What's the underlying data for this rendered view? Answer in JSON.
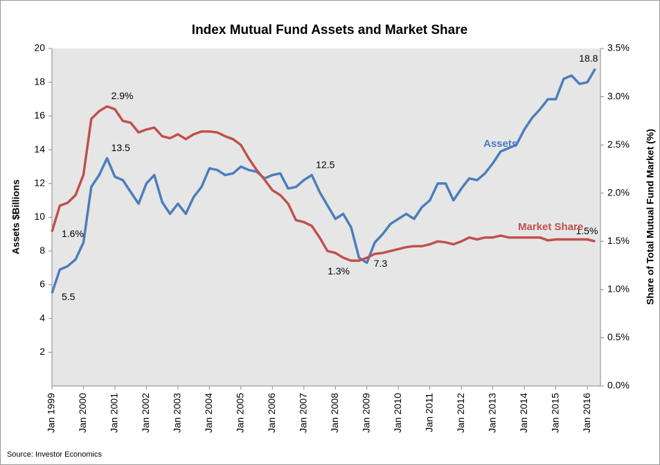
{
  "chart_data": {
    "type": "line",
    "title": "Index Mutual Fund Assets and Market Share",
    "ylabel": "Assets $Billions",
    "y2label": "Share of Total Mutual Fund Market (%)",
    "source": "Source: Investor Economics",
    "x": [
      "1999-01",
      "1999-04",
      "1999-07",
      "1999-10",
      "2000-01",
      "2000-04",
      "2000-07",
      "2000-10",
      "2001-01",
      "2001-04",
      "2001-07",
      "2001-10",
      "2002-01",
      "2002-04",
      "2002-07",
      "2002-10",
      "2003-01",
      "2003-04",
      "2003-07",
      "2003-10",
      "2004-01",
      "2004-04",
      "2004-07",
      "2004-10",
      "2005-01",
      "2005-04",
      "2005-07",
      "2005-10",
      "2006-01",
      "2006-04",
      "2006-07",
      "2006-10",
      "2007-01",
      "2007-04",
      "2007-07",
      "2007-10",
      "2008-01",
      "2008-04",
      "2008-07",
      "2008-10",
      "2009-01",
      "2009-04",
      "2009-07",
      "2009-10",
      "2010-01",
      "2010-04",
      "2010-07",
      "2010-10",
      "2011-01",
      "2011-04",
      "2011-07",
      "2011-10",
      "2012-01",
      "2012-04",
      "2012-07",
      "2012-10",
      "2013-01",
      "2013-04",
      "2013-07",
      "2013-10",
      "2014-01",
      "2014-04",
      "2014-07",
      "2014-10",
      "2015-01",
      "2015-04",
      "2015-07",
      "2015-10",
      "2016-01",
      "2016-04"
    ],
    "xlim": [
      "1999-01",
      "2016-06"
    ],
    "xticks": [
      {
        "value": "1999-01",
        "label": "Jan 1999"
      },
      {
        "value": "2000-01",
        "label": "Jan 2000"
      },
      {
        "value": "2001-01",
        "label": "Jan 2001"
      },
      {
        "value": "2002-01",
        "label": "Jan 2002"
      },
      {
        "value": "2003-01",
        "label": "Jan 2003"
      },
      {
        "value": "2004-01",
        "label": "Jan 2004"
      },
      {
        "value": "2005-01",
        "label": "Jan 2005"
      },
      {
        "value": "2006-01",
        "label": "Jan 2006"
      },
      {
        "value": "2007-01",
        "label": "Jan 2007"
      },
      {
        "value": "2008-01",
        "label": "Jan 2008"
      },
      {
        "value": "2009-01",
        "label": "Jan 2009"
      },
      {
        "value": "2010-01",
        "label": "Jan 2010"
      },
      {
        "value": "2011-01",
        "label": "Jan 2011"
      },
      {
        "value": "2012-01",
        "label": "Jan 2012"
      },
      {
        "value": "2013-01",
        "label": "Jan 2013"
      },
      {
        "value": "2014-01",
        "label": "Jan 2014"
      },
      {
        "value": "2015-01",
        "label": "Jan 2015"
      },
      {
        "value": "2016-01",
        "label": "Jan 2016"
      }
    ],
    "ylim": [
      0,
      20
    ],
    "yticks": [
      2,
      4,
      6,
      8,
      10,
      12,
      14,
      16,
      18,
      20
    ],
    "y2lim": [
      0,
      3.5
    ],
    "y2ticks": [
      {
        "value": 0,
        "label": "0.0%"
      },
      {
        "value": 0.5,
        "label": "0.5%"
      },
      {
        "value": 1,
        "label": "1.0%"
      },
      {
        "value": 1.5,
        "label": "1.5%"
      },
      {
        "value": 2,
        "label": "2.0%"
      },
      {
        "value": 2.5,
        "label": "2.5%"
      },
      {
        "value": 3,
        "label": "3.0%"
      },
      {
        "value": 3.5,
        "label": "3.5%"
      }
    ],
    "grid": false,
    "series": [
      {
        "name": "Assets",
        "color": "#4a7ebb",
        "values": [
          5.5,
          6.9,
          7.1,
          7.5,
          8.5,
          11.8,
          12.5,
          13.5,
          12.4,
          12.2,
          11.5,
          10.8,
          12.0,
          12.5,
          10.9,
          10.2,
          10.8,
          10.2,
          11.2,
          11.8,
          12.9,
          12.8,
          12.5,
          12.6,
          13.0,
          12.8,
          12.7,
          12.3,
          12.5,
          12.6,
          11.7,
          11.8,
          12.2,
          12.5,
          11.5,
          10.7,
          9.9,
          10.2,
          9.4,
          7.6,
          7.3,
          8.5,
          9.0,
          9.6,
          9.9,
          10.2,
          9.9,
          10.6,
          11.0,
          12.0,
          12.0,
          11.0,
          11.7,
          12.3,
          12.2,
          12.6,
          13.2,
          13.9,
          14.1,
          14.3,
          15.2,
          15.9,
          16.4,
          17.0,
          17.0,
          18.2,
          18.4,
          17.9,
          18.0,
          18.8
        ],
        "value_labels": [
          "5.5",
          null,
          null,
          null,
          null,
          null,
          null,
          "13.5",
          null,
          null,
          null,
          null,
          null,
          null,
          null,
          null,
          null,
          null,
          null,
          null,
          null,
          null,
          null,
          null,
          null,
          null,
          null,
          null,
          null,
          null,
          null,
          null,
          null,
          "12.5",
          null,
          null,
          null,
          null,
          null,
          null,
          "7.3",
          null,
          null,
          null,
          null,
          null,
          null,
          null,
          null,
          null,
          null,
          null,
          null,
          null,
          null,
          null,
          null,
          null,
          null,
          null,
          null,
          null,
          null,
          null,
          null,
          null,
          null,
          null,
          null,
          "18.8"
        ]
      },
      {
        "name": "Market Share",
        "color": "#c0504d",
        "axis": "y2",
        "values": [
          1.6,
          1.87,
          1.9,
          1.98,
          2.19,
          2.77,
          2.85,
          2.9,
          2.87,
          2.75,
          2.73,
          2.63,
          2.66,
          2.68,
          2.59,
          2.57,
          2.61,
          2.56,
          2.61,
          2.64,
          2.64,
          2.63,
          2.59,
          2.56,
          2.5,
          2.36,
          2.24,
          2.14,
          2.03,
          1.98,
          1.89,
          1.72,
          1.7,
          1.66,
          1.54,
          1.4,
          1.38,
          1.33,
          1.3,
          1.3,
          1.33,
          1.37,
          1.38,
          1.4,
          1.42,
          1.44,
          1.45,
          1.45,
          1.47,
          1.5,
          1.49,
          1.47,
          1.5,
          1.54,
          1.52,
          1.54,
          1.54,
          1.56,
          1.54,
          1.54,
          1.54,
          1.54,
          1.54,
          1.51,
          1.52,
          1.52,
          1.52,
          1.52,
          1.52,
          1.5
        ],
        "value_labels": [
          "1.6%",
          null,
          null,
          null,
          null,
          null,
          null,
          "2.9%",
          null,
          null,
          null,
          null,
          null,
          null,
          null,
          null,
          null,
          null,
          null,
          null,
          null,
          null,
          null,
          null,
          null,
          null,
          null,
          null,
          null,
          null,
          null,
          null,
          null,
          null,
          null,
          null,
          null,
          null,
          "1.3%",
          null,
          null,
          null,
          null,
          null,
          null,
          null,
          null,
          null,
          null,
          null,
          null,
          null,
          null,
          null,
          null,
          null,
          null,
          null,
          null,
          null,
          null,
          null,
          null,
          null,
          null,
          null,
          null,
          null,
          null,
          "1.5%"
        ]
      }
    ]
  }
}
